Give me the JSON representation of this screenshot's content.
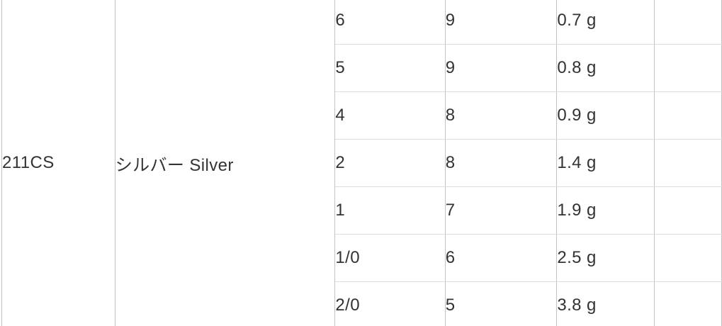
{
  "table": {
    "model": "211CS",
    "color": "シルバー Silver",
    "rows": [
      {
        "size": "6",
        "count": "9",
        "weight": "0.7 g"
      },
      {
        "size": "5",
        "count": "9",
        "weight": "0.8 g"
      },
      {
        "size": "4",
        "count": "8",
        "weight": "0.9 g"
      },
      {
        "size": "2",
        "count": "8",
        "weight": "1.4 g"
      },
      {
        "size": "1",
        "count": "7",
        "weight": "1.9 g"
      },
      {
        "size": "1/0",
        "count": "6",
        "weight": "2.5 g"
      },
      {
        "size": "2/0",
        "count": "5",
        "weight": "3.8 g"
      }
    ]
  },
  "colors": {
    "text": "#333333",
    "border_vertical": "#c2c2c2",
    "border_horizontal": "#dcdcdc",
    "background": "#ffffff"
  }
}
